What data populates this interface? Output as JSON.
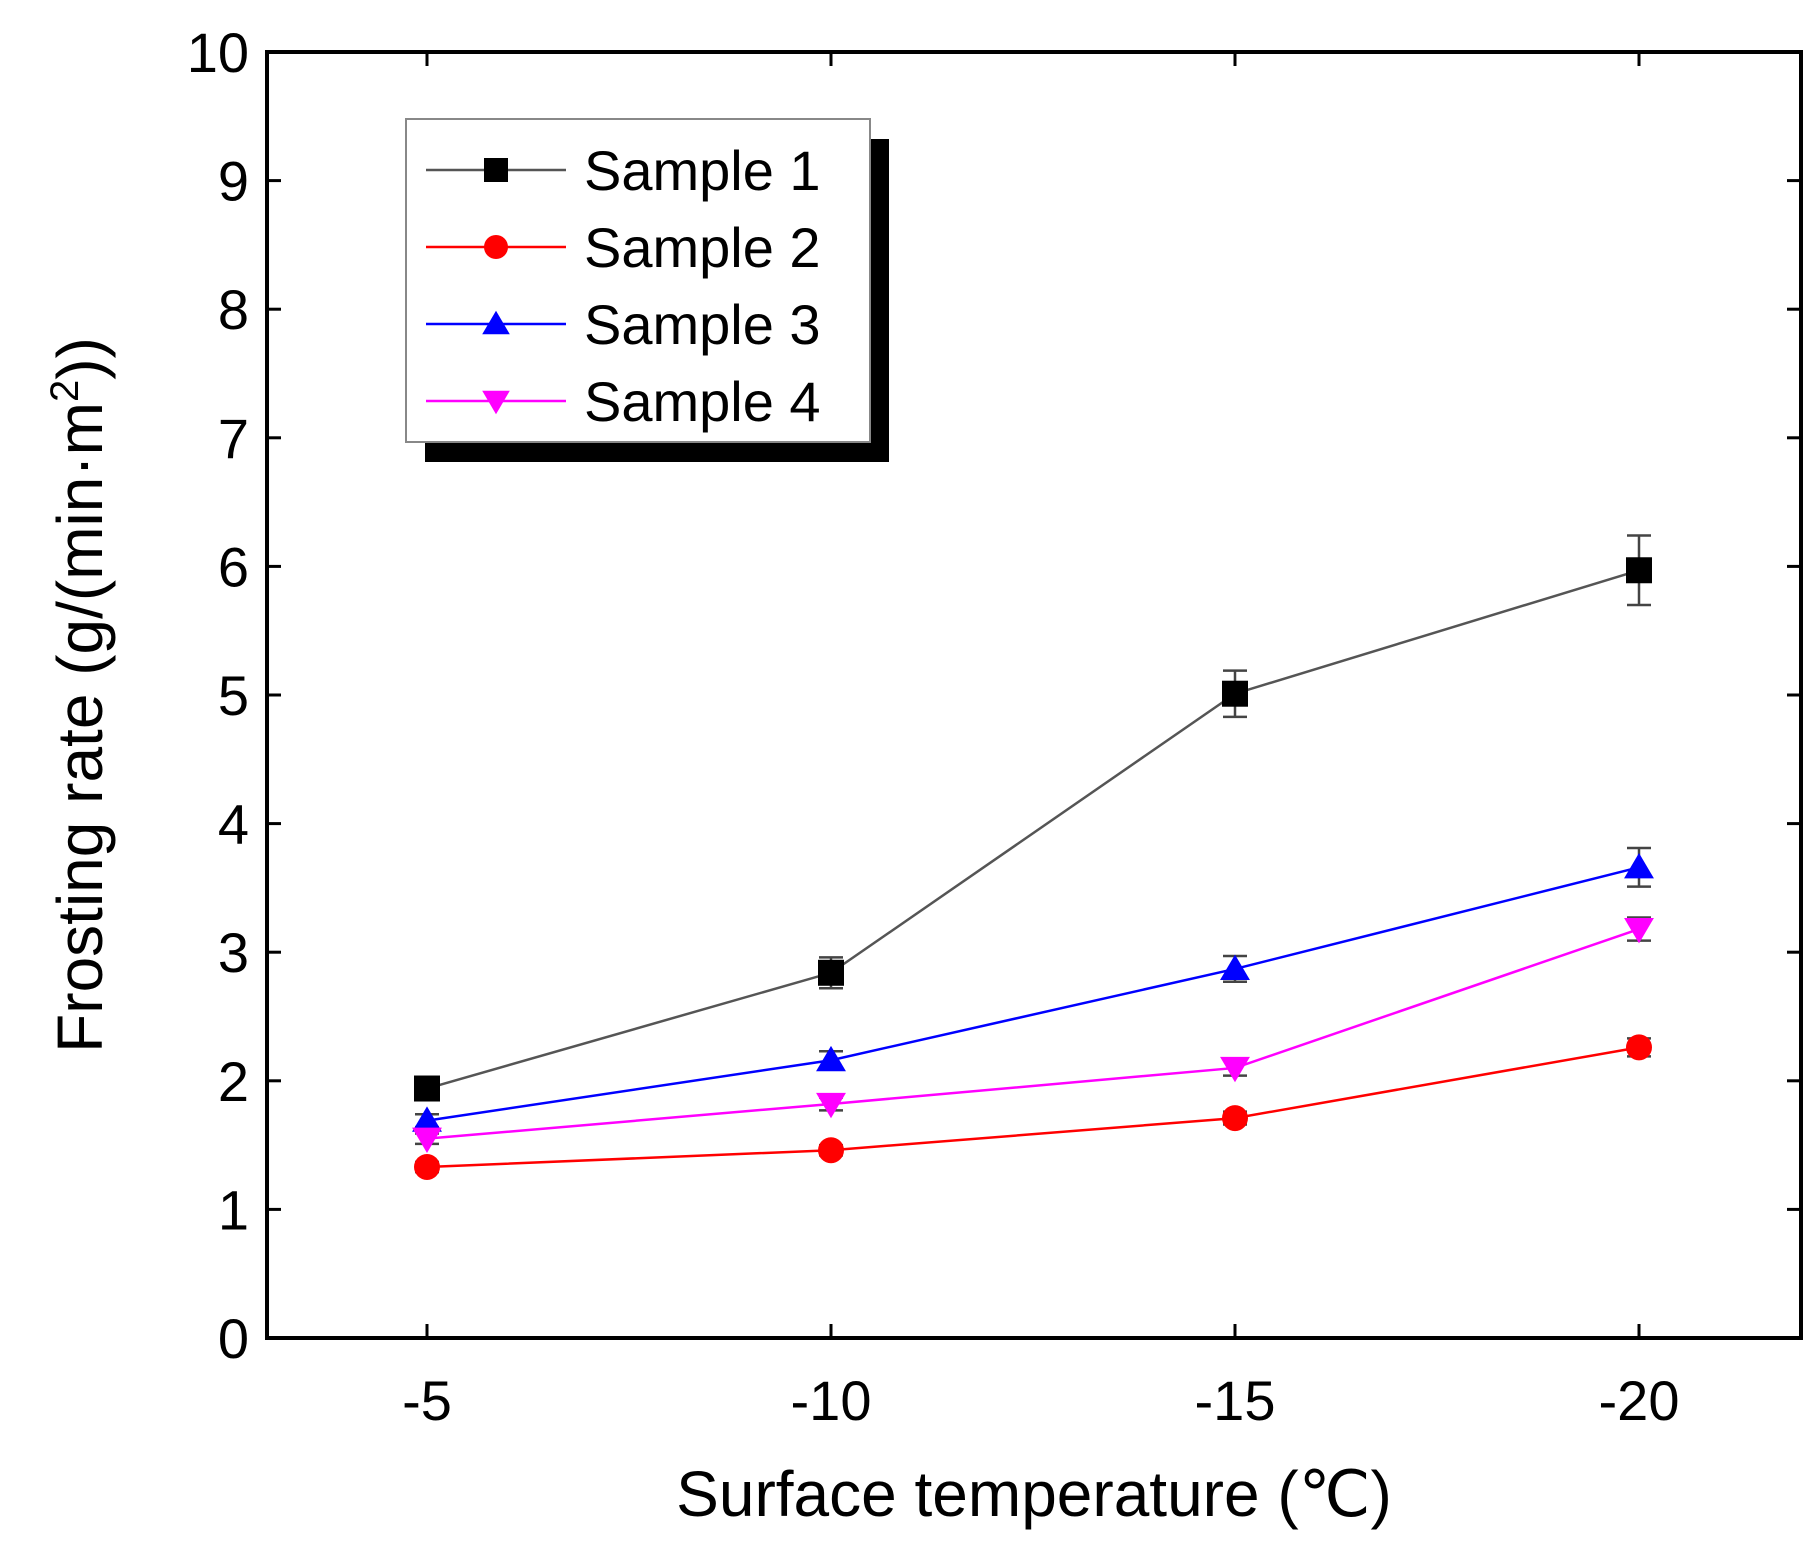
{
  "chart_data": {
    "type": "line",
    "xlabel": "Surface temperature (℃)",
    "ylabel_main": "Frosting rate (g/(min·m",
    "ylabel_sup": "2",
    "ylabel_tail": "))",
    "ylim": [
      0,
      10
    ],
    "yticks": [
      "0",
      "1",
      "2",
      "3",
      "4",
      "5",
      "6",
      "7",
      "8",
      "9",
      "10"
    ],
    "categories": [
      "-5",
      "-10",
      "-15",
      "-20"
    ],
    "grid": false,
    "legend_position": "top-left",
    "series": [
      {
        "name": "Sample 1",
        "color": "#000000",
        "line_color": "#555555",
        "marker": "square",
        "values": [
          1.94,
          2.84,
          5.01,
          5.97
        ],
        "errors": [
          0.05,
          0.12,
          0.18,
          0.27
        ]
      },
      {
        "name": "Sample 2",
        "color": "#ff0000",
        "line_color": "#ff0000",
        "marker": "circle",
        "values": [
          1.33,
          1.46,
          1.71,
          2.26
        ],
        "errors": [
          0.04,
          0.04,
          0.05,
          0.07
        ]
      },
      {
        "name": "Sample 3",
        "color": "#0000ff",
        "line_color": "#0000ff",
        "marker": "triangle-up",
        "values": [
          1.69,
          2.16,
          2.87,
          3.66
        ],
        "errors": [
          0.05,
          0.07,
          0.1,
          0.15
        ]
      },
      {
        "name": "Sample 4",
        "color": "#ff00ff",
        "line_color": "#ff00ff",
        "marker": "triangle-down",
        "values": [
          1.55,
          1.82,
          2.1,
          3.18
        ],
        "errors": [
          0.04,
          0.05,
          0.06,
          0.09
        ]
      }
    ]
  }
}
